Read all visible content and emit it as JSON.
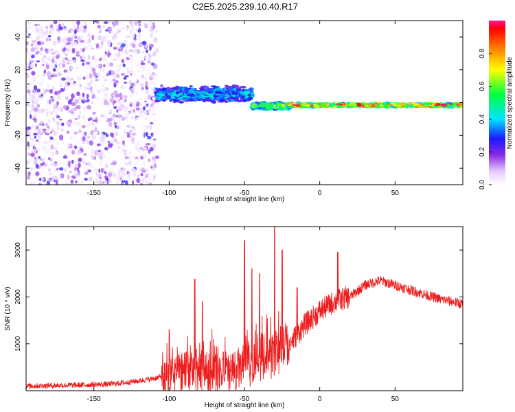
{
  "title": "C2E5.2025.239.10.40.R17",
  "colors": {
    "trace": "#ee1c1c",
    "frame": "#000000"
  },
  "chart_data": [
    {
      "type": "heatmap",
      "xlabel": "Height of straight line (km)",
      "ylabel": "Frequency (Hz)",
      "xlim": [
        -195,
        95
      ],
      "ylim": [
        -50,
        50
      ],
      "xticks": [
        -150,
        -100,
        -50,
        0,
        50
      ],
      "yticks": [
        -40,
        -20,
        0,
        20,
        40
      ],
      "xtick_labels": [
        "-150",
        "-100",
        "-50",
        "0",
        "50"
      ],
      "ytick_labels": [
        "-40",
        "-20",
        "0",
        "20",
        "40"
      ],
      "colorbar": {
        "label": "Normalized spectral amplitude",
        "range": [
          0,
          1
        ],
        "ticks": [
          0.0,
          0.2,
          0.4,
          0.6,
          0.8
        ],
        "tick_labels": [
          "0.0",
          "0.2",
          "0.4",
          "0.6",
          "0.8"
        ]
      },
      "regions": [
        {
          "x_start": -195,
          "x_end": -108,
          "freq_center": 0,
          "freq_spread": 50,
          "amp": 0.15,
          "description": "broad noise"
        },
        {
          "x_start": -108,
          "x_end": -45,
          "freq_center": 5,
          "freq_spread": 6,
          "amp": 0.45
        },
        {
          "x_start": -45,
          "x_end": -20,
          "freq_center": -2,
          "freq_spread": 3,
          "amp": 0.7
        },
        {
          "x_start": -20,
          "x_end": 95,
          "freq_center": -1.5,
          "freq_spread": 1.5,
          "amp": 0.95
        }
      ]
    },
    {
      "type": "line",
      "xlabel": "Height of straight line (km)",
      "ylabel": "SNR (10 * v/v)",
      "xlim": [
        -195,
        95
      ],
      "ylim": [
        0,
        3500
      ],
      "xticks": [
        -150,
        -100,
        -50,
        0,
        50
      ],
      "yticks": [
        1000,
        2000,
        3000
      ],
      "xtick_labels": [
        "-150",
        "-100",
        "-50",
        "0",
        "50"
      ],
      "ytick_labels": [
        "1000",
        "2000",
        "3000"
      ],
      "series": [
        {
          "name": "SNR",
          "color": "#ee1c1c",
          "x": [
            -195,
            -180,
            -160,
            -140,
            -130,
            -120,
            -110,
            -105,
            -100,
            -90,
            -80,
            -70,
            -60,
            -50,
            -40,
            -30,
            -20,
            -10,
            0,
            10,
            20,
            30,
            40,
            50,
            60,
            70,
            80,
            95
          ],
          "y": [
            100,
            110,
            120,
            140,
            170,
            210,
            260,
            300,
            350,
            420,
            460,
            420,
            380,
            520,
            700,
            800,
            1000,
            1400,
            1700,
            1900,
            2000,
            2250,
            2350,
            2250,
            2150,
            2050,
            1950,
            1850
          ]
        }
      ],
      "peaks": [
        {
          "x": -100,
          "y": 1300
        },
        {
          "x": -83,
          "y": 2380
        },
        {
          "x": -78,
          "y": 1900
        },
        {
          "x": -50,
          "y": 3200
        },
        {
          "x": -45,
          "y": 2600
        },
        {
          "x": -40,
          "y": 2500
        },
        {
          "x": -30,
          "y": 3500
        },
        {
          "x": -25,
          "y": 3000
        },
        {
          "x": -15,
          "y": 2200
        },
        {
          "x": 12,
          "y": 2950
        }
      ]
    }
  ]
}
